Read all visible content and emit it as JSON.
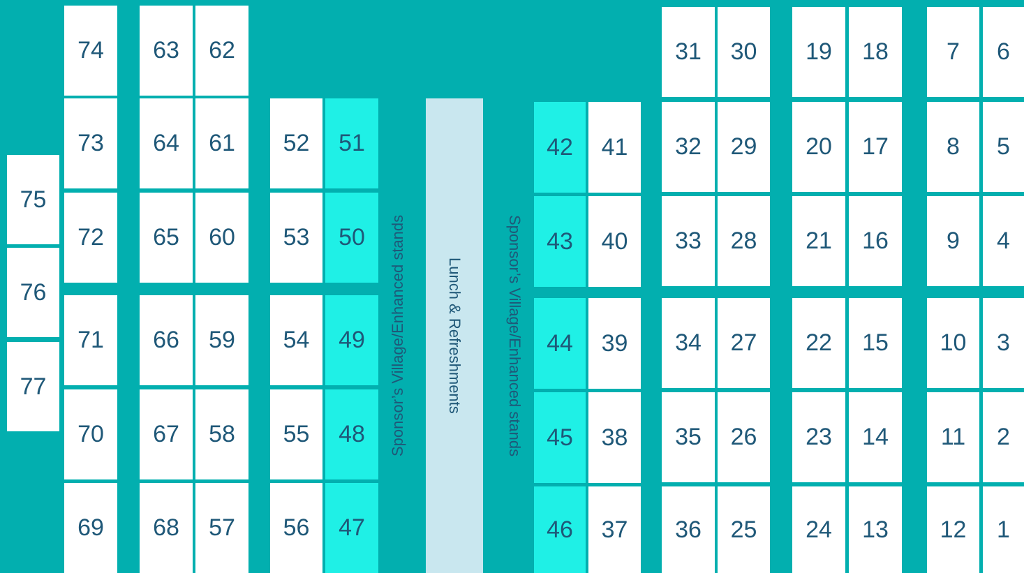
{
  "stands": [
    [
      "75",
      "76",
      "77"
    ],
    [
      "74",
      "73",
      "72",
      "71",
      "70",
      "69"
    ],
    [
      "63",
      "64",
      "65",
      "66",
      "67",
      "68"
    ],
    [
      "62",
      "61",
      "60",
      "59",
      "58",
      "57"
    ],
    [
      "52",
      "53",
      "54",
      "55",
      "56"
    ],
    [
      "51",
      "50",
      "49",
      "48",
      "47"
    ],
    [
      "42",
      "43",
      "44",
      "45",
      "46"
    ],
    [
      "41",
      "40",
      "39",
      "38",
      "37"
    ],
    [
      "31",
      "32",
      "33",
      "34",
      "35",
      "36"
    ],
    [
      "30",
      "29",
      "28",
      "27",
      "26",
      "25"
    ],
    [
      "19",
      "20",
      "21",
      "22",
      "23",
      "24"
    ],
    [
      "18",
      "17",
      "16",
      "15",
      "14",
      "13"
    ],
    [
      "7",
      "8",
      "9",
      "10",
      "11",
      "12"
    ],
    [
      "6",
      "5",
      "4",
      "3",
      "2",
      "1"
    ]
  ],
  "lunch": "Lunch & Refreshments",
  "sponsor_left": "Sponsor’s Village/Enhanced stands",
  "sponsor_right": "Sponsor’s Village/Enhanced stands"
}
